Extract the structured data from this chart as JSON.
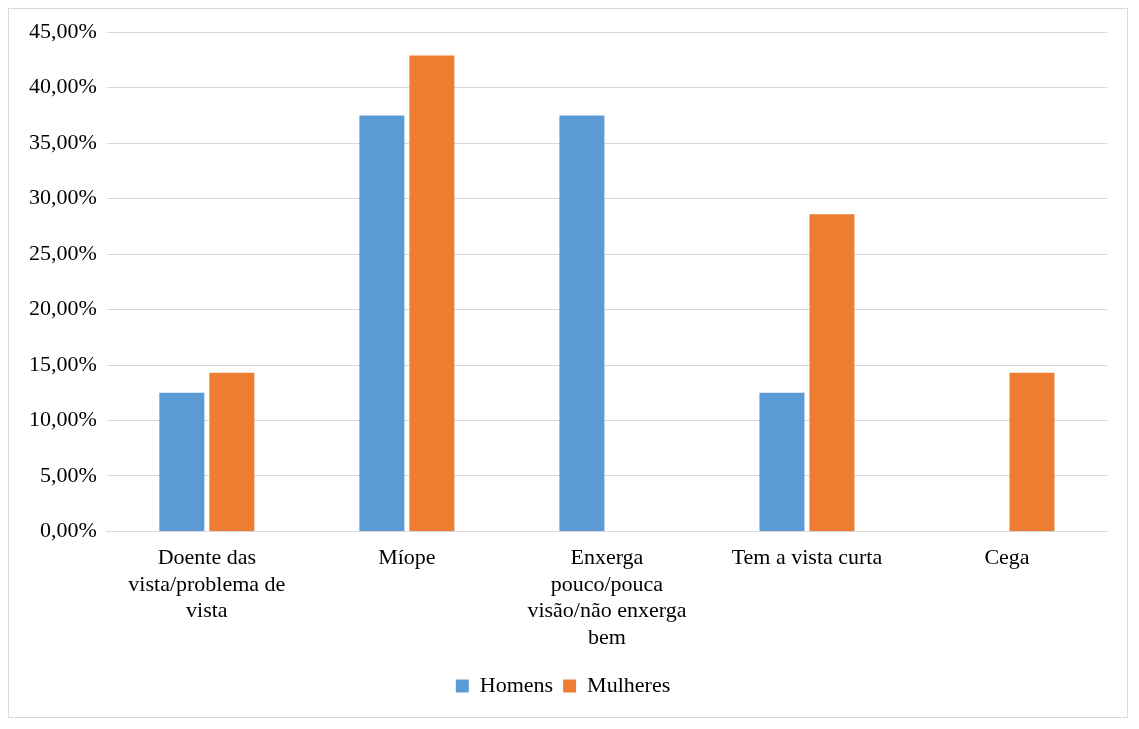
{
  "chart_data": {
    "type": "bar",
    "categories": [
      "Doente das vista/problema de vista",
      "Míope",
      "Enxerga pouco/pouca visão/não enxerga bem",
      "Tem a vista curta",
      "Cega"
    ],
    "series": [
      {
        "name": "Homens",
        "color": "#5b9bd5",
        "values": [
          12.5,
          37.5,
          37.5,
          12.5,
          0
        ]
      },
      {
        "name": "Mulheres",
        "color": "#ed7d31",
        "values": [
          14.3,
          42.9,
          0,
          28.6,
          14.3
        ]
      }
    ],
    "ylim": [
      0,
      45
    ],
    "yticks": [
      {
        "value": 0,
        "label": "0,00%"
      },
      {
        "value": 5,
        "label": "5,00%"
      },
      {
        "value": 10,
        "label": "10,00%"
      },
      {
        "value": 15,
        "label": "15,00%"
      },
      {
        "value": 20,
        "label": "20,00%"
      },
      {
        "value": 25,
        "label": "25,00%"
      },
      {
        "value": 30,
        "label": "30,00%"
      },
      {
        "value": 35,
        "label": "35,00%"
      },
      {
        "value": 40,
        "label": "40,00%"
      },
      {
        "value": 45,
        "label": "45,00%"
      }
    ],
    "grid": "y",
    "legend": "bottom"
  }
}
